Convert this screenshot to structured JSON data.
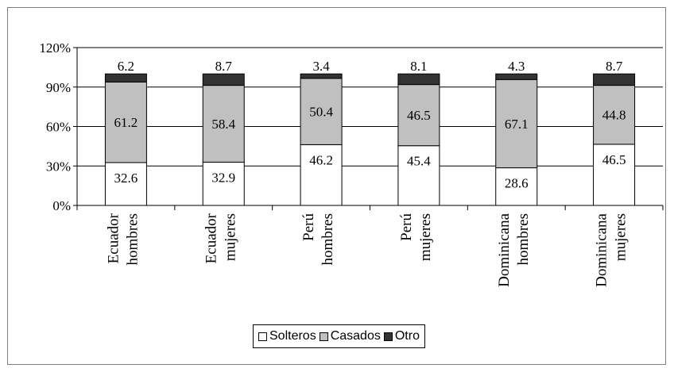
{
  "chart_data": {
    "type": "bar",
    "stacked": true,
    "title": "",
    "xlabel": "",
    "ylabel": "",
    "ylim": [
      0,
      120
    ],
    "y_ticks": [
      "0%",
      "30%",
      "60%",
      "90%",
      "120%"
    ],
    "grid": true,
    "legend_placement": "bottom",
    "categories": [
      [
        "Ecuador",
        "hombres"
      ],
      [
        "Ecuador",
        "mujeres"
      ],
      [
        "Perú",
        "hombres"
      ],
      [
        "Perú",
        "mujeres"
      ],
      [
        "Dominicana",
        "hombres"
      ],
      [
        "Dominicana",
        "mujeres"
      ]
    ],
    "series": [
      {
        "name": "Solteros",
        "color": "#ffffff",
        "values": [
          32.6,
          32.9,
          46.2,
          45.4,
          28.6,
          46.5
        ],
        "labels": [
          "32.6",
          "32.9",
          "46.2",
          "45.4",
          "28.6",
          "46.5"
        ]
      },
      {
        "name": "Casados",
        "color": "#c0c0c0",
        "values": [
          61.2,
          58.4,
          50.4,
          46.5,
          67.1,
          44.8
        ],
        "labels": [
          "61.2",
          "58.4",
          "50.4",
          "46.5",
          "67.1",
          "44.8"
        ]
      },
      {
        "name": "Otro",
        "color": "#333333",
        "values": [
          6.2,
          8.7,
          3.4,
          8.1,
          4.3,
          8.7
        ],
        "labels": [
          "6.2",
          "8.7",
          "3.4",
          "8.1",
          "4.3",
          "8.7"
        ]
      }
    ]
  }
}
